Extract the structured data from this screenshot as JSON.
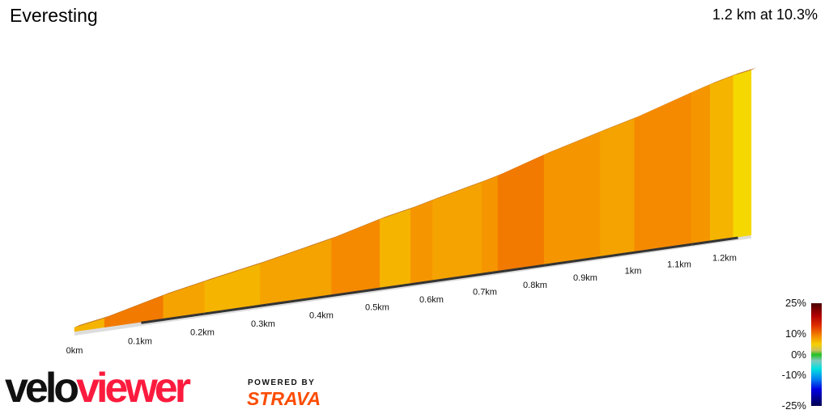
{
  "header": {
    "title": "Everesting",
    "summary": "1.2 km at 10.3%"
  },
  "chart_data": {
    "type": "area",
    "title": "Everesting",
    "xlabel": "",
    "ylabel": "",
    "x_ticks": [
      "0km",
      "0.1km",
      "0.2km",
      "0.3km",
      "0.4km",
      "0.5km",
      "0.6km",
      "0.7km",
      "0.8km",
      "0.9km",
      "1km",
      "1.1km",
      "1.2km"
    ],
    "segments": [
      {
        "from_km": 0,
        "to_km": 0.045,
        "gradient_pct": 9
      },
      {
        "from_km": 0.045,
        "to_km": 0.135,
        "gradient_pct": 13
      },
      {
        "from_km": 0.135,
        "to_km": 0.2,
        "gradient_pct": 10
      },
      {
        "from_km": 0.2,
        "to_km": 0.29,
        "gradient_pct": 9
      },
      {
        "from_km": 0.29,
        "to_km": 0.41,
        "gradient_pct": 10
      },
      {
        "from_km": 0.41,
        "to_km": 0.495,
        "gradient_pct": 12
      },
      {
        "from_km": 0.495,
        "to_km": 0.55,
        "gradient_pct": 9
      },
      {
        "from_km": 0.55,
        "to_km": 0.59,
        "gradient_pct": 11
      },
      {
        "from_km": 0.59,
        "to_km": 0.68,
        "gradient_pct": 10
      },
      {
        "from_km": 0.68,
        "to_km": 0.71,
        "gradient_pct": 11
      },
      {
        "from_km": 0.71,
        "to_km": 0.8,
        "gradient_pct": 13
      },
      {
        "from_km": 0.8,
        "to_km": 0.91,
        "gradient_pct": 11
      },
      {
        "from_km": 0.91,
        "to_km": 0.98,
        "gradient_pct": 10
      },
      {
        "from_km": 0.98,
        "to_km": 1.1,
        "gradient_pct": 12
      },
      {
        "from_km": 1.1,
        "to_km": 1.14,
        "gradient_pct": 11
      },
      {
        "from_km": 1.14,
        "to_km": 1.19,
        "gradient_pct": 9
      },
      {
        "from_km": 1.19,
        "to_km": 1.23,
        "gradient_pct": 6
      }
    ],
    "gradient_colors": {
      "6": "#f5d800",
      "9": "#f5b400",
      "10": "#f5a300",
      "11": "#f59600",
      "12": "#f58a00",
      "13": "#f27a00"
    },
    "legend": {
      "labels": [
        "25%",
        "10%",
        "0%",
        "-10%",
        "-25%"
      ],
      "placement": "bottom-right"
    }
  },
  "branding": {
    "logo_velo": "velo",
    "logo_viewer": "viewer",
    "powered_by": "POWERED BY",
    "strava": "STRAVA"
  }
}
